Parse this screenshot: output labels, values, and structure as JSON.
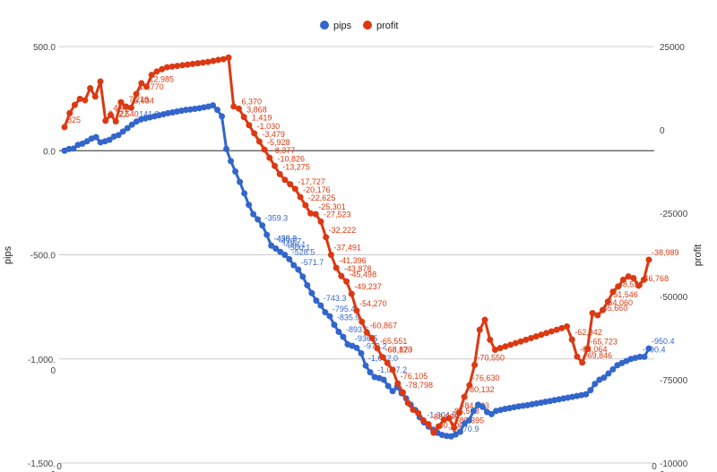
{
  "chart_data": {
    "type": "line",
    "title": "",
    "legend": {
      "position": "top",
      "entries": [
        "pips",
        "profit"
      ]
    },
    "xlabel": "",
    "x_tick_labels": [
      "0",
      "0"
    ],
    "ylabel_left": "pips",
    "ylabel_right": "profit",
    "ylim_left": [
      -1500,
      500
    ],
    "ylim_right": [
      -100000,
      25000
    ],
    "left_tick_labels": [
      "500.0",
      "0.0",
      "-500.0",
      "-1,000.\n0",
      "-1,500.\n0"
    ],
    "right_tick_labels": [
      "25000",
      "0",
      "-25000",
      "-50000",
      "-75000",
      "-10000\n0"
    ],
    "grid": true,
    "colors": {
      "pips": "#3366cc",
      "profit": "#dc3912"
    },
    "series": [
      {
        "name": "pips",
        "axis": "left",
        "values": [
          0,
          8,
          10,
          28,
          34,
          45,
          58,
          65,
          40,
          45,
          52,
          68,
          75,
          92,
          108,
          125,
          140,
          150,
          155,
          160,
          165,
          170,
          175,
          180,
          184,
          188,
          192,
          196,
          198,
          201,
          204,
          208,
          212,
          218,
          196,
          165,
          8,
          -50,
          -100,
          -150,
          -205,
          -260,
          -305,
          -330,
          -359,
          -404,
          -456,
          -470,
          -486,
          -500,
          -521,
          -550,
          -571,
          -605,
          -646,
          -684,
          -720,
          -743,
          -776,
          -795,
          -836,
          -870,
          -894,
          -930,
          -937,
          -947,
          -973,
          -1032,
          -1064,
          -1087,
          -1092,
          -1100,
          -1130,
          -1155,
          -1135,
          -1165,
          -1190,
          -1220,
          -1245,
          -1280,
          -1305,
          -1325,
          -1340,
          -1355,
          -1365,
          -1370,
          -1372,
          -1363,
          -1350,
          -1310,
          -1295,
          -1250,
          -1220,
          -1230,
          -1255,
          -1265,
          -1250,
          -1245,
          -1240,
          -1236,
          -1232,
          -1228,
          -1225,
          -1222,
          -1218,
          -1214,
          -1210,
          -1206,
          -1202,
          -1198,
          -1194,
          -1190,
          -1186,
          -1182,
          -1178,
          -1174,
          -1170,
          -1150,
          -1120,
          -1100,
          -1090,
          -1070,
          -1050,
          -1030,
          -1020,
          -1010,
          -1000,
          -995,
          -990,
          -990,
          -950
        ]
      },
      {
        "name": "profit",
        "axis": "right",
        "values": [
          825,
          5000,
          7500,
          9300,
          8900,
          12500,
          10000,
          14500,
          2722,
          4481,
          2540,
          8300,
          7000,
          6634,
          10770,
          14000,
          12985,
          16500,
          17500,
          18200,
          18800,
          19000,
          19200,
          19400,
          19600,
          19800,
          20000,
          20200,
          20400,
          20700,
          21000,
          21216,
          21700,
          7000,
          6370,
          3868,
          1419,
          -1030,
          -3479,
          -5928,
          -8377,
          -10826,
          -13275,
          -15000,
          -16300,
          -17727,
          -20176,
          -22625,
          -25074,
          -25301,
          -27523,
          -32222,
          -37491,
          -41396,
          -43878,
          -45498,
          -49237,
          -54270,
          -57600,
          -60867,
          -62500,
          -65551,
          -68173,
          -70000,
          -72000,
          -76105,
          -78798,
          -82000,
          -84000,
          -85000,
          -87195,
          -88339,
          -90909,
          -89000,
          -87000,
          -86568,
          -89395,
          -84923,
          -80132,
          -76630,
          -70550,
          -60000,
          -57000,
          -63000,
          -66000,
          -65500,
          -65000,
          -64500,
          -64000,
          -63500,
          -63000,
          -62500,
          -62000,
          -61500,
          -61000,
          -60500,
          -60000,
          -59500,
          -59000,
          -62942,
          -68064,
          -69846,
          -65723,
          -55000,
          -55660,
          -54060,
          -51546,
          -48558,
          -47000,
          -45000,
          -44000,
          -44500,
          -46768,
          -45000,
          -38989
        ]
      }
    ],
    "data_labels": [
      {
        "series": "profit",
        "text": "825"
      },
      {
        "series": "profit",
        "text": "2,722"
      },
      {
        "series": "profit",
        "text": "4,481"
      },
      {
        "series": "profit",
        "text": "2,540"
      },
      {
        "series": "profit",
        "text": "6,634"
      },
      {
        "series": "profit",
        "text": "10,770"
      },
      {
        "series": "profit",
        "text": "12,985"
      },
      {
        "series": "profit",
        "text": "7,216"
      },
      {
        "series": "profit",
        "text": "6,370"
      },
      {
        "series": "profit",
        "text": "3,868"
      },
      {
        "series": "profit",
        "text": "1,419"
      },
      {
        "series": "profit",
        "text": "-1,030"
      },
      {
        "series": "profit",
        "text": "-3,479"
      },
      {
        "series": "profit",
        "text": "-5,928"
      },
      {
        "series": "profit",
        "text": "-8,377"
      },
      {
        "series": "profit",
        "text": "-10,826"
      },
      {
        "series": "profit",
        "text": "-13,275"
      },
      {
        "series": "profit",
        "text": "-17,727"
      },
      {
        "series": "profit",
        "text": "-20,176"
      },
      {
        "series": "profit",
        "text": "-22,625"
      },
      {
        "series": "profit",
        "text": "-25,301"
      },
      {
        "series": "profit",
        "text": "-27,523"
      },
      {
        "series": "profit",
        "text": "-32,222"
      },
      {
        "series": "profit",
        "text": "-37,491"
      },
      {
        "series": "profit",
        "text": "-41,396"
      },
      {
        "series": "profit",
        "text": "-43,878"
      },
      {
        "series": "profit",
        "text": "-45,498"
      },
      {
        "series": "profit",
        "text": "-49,237"
      },
      {
        "series": "profit",
        "text": "-54,270"
      },
      {
        "series": "profit",
        "text": "-60,867"
      },
      {
        "series": "profit",
        "text": "-65,551"
      },
      {
        "series": "profit",
        "text": "-68,173"
      },
      {
        "series": "profit",
        "text": "-76,105"
      },
      {
        "series": "profit",
        "text": "-78,798"
      },
      {
        "series": "profit",
        "text": "-86,568"
      },
      {
        "series": "profit",
        "text": "-88,339"
      },
      {
        "series": "profit",
        "text": "-90,909"
      },
      {
        "series": "profit",
        "text": "-89,395"
      },
      {
        "series": "profit",
        "text": "-84,923"
      },
      {
        "series": "profit",
        "text": "-80,132"
      },
      {
        "series": "profit",
        "text": "-76,630"
      },
      {
        "series": "profit",
        "text": "-70,550"
      },
      {
        "series": "profit",
        "text": "-68,820"
      },
      {
        "series": "profit",
        "text": "-62,942"
      },
      {
        "series": "profit",
        "text": "-68,064"
      },
      {
        "series": "profit",
        "text": "-69,846"
      },
      {
        "series": "profit",
        "text": "-65,723"
      },
      {
        "series": "profit",
        "text": "-55,660"
      },
      {
        "series": "profit",
        "text": "-54,060"
      },
      {
        "series": "profit",
        "text": "-51,546"
      },
      {
        "series": "profit",
        "text": "-48,558"
      },
      {
        "series": "profit",
        "text": "-46,768"
      },
      {
        "series": "profit",
        "text": "-38,989"
      },
      {
        "series": "pips",
        "text": "141.9"
      },
      {
        "series": "pips",
        "text": "-359.3"
      },
      {
        "series": "pips",
        "text": "-430.9"
      },
      {
        "series": "pips",
        "text": "-455.3"
      },
      {
        "series": "pips",
        "text": "-470.7"
      },
      {
        "series": "pips",
        "text": "-486.1"
      },
      {
        "series": "pips",
        "text": "-500.1"
      },
      {
        "series": "pips",
        "text": "-528.5"
      },
      {
        "series": "pips",
        "text": "-571.7"
      },
      {
        "series": "pips",
        "text": "-743.3"
      },
      {
        "series": "pips",
        "text": "-795.4"
      },
      {
        "series": "pips",
        "text": "-835.9"
      },
      {
        "series": "pips",
        "text": "-893.6"
      },
      {
        "series": "pips",
        "text": "-936.5"
      },
      {
        "series": "pips",
        "text": "-973.2"
      },
      {
        "series": "pips",
        "text": "-1,032.0"
      },
      {
        "series": "pips",
        "text": "-1,087.2"
      },
      {
        "series": "pips",
        "text": "-1,304.6"
      },
      {
        "series": "pips",
        "text": "-1,370.9"
      },
      {
        "series": "pips",
        "text": "-990.4"
      },
      {
        "series": "pips",
        "text": "-950.4"
      }
    ]
  }
}
